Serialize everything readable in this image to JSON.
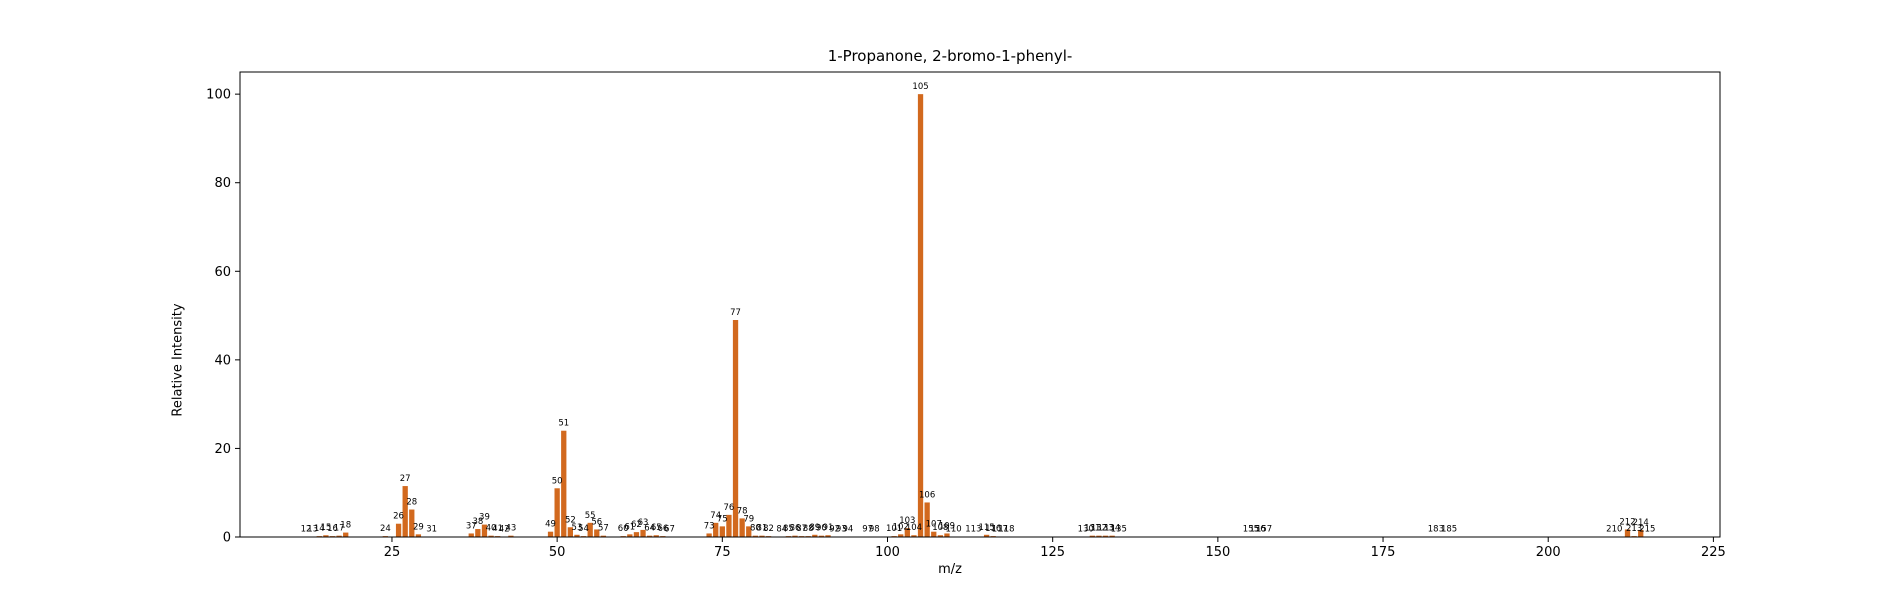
{
  "chart_data": {
    "type": "bar",
    "title": "1-Propanone, 2-bromo-1-phenyl-",
    "xlabel": "m/z",
    "ylabel": "Relative Intensity",
    "xlim": [
      2,
      226
    ],
    "ylim": [
      0,
      105
    ],
    "xticks": [
      25,
      50,
      75,
      100,
      125,
      150,
      175,
      200,
      225
    ],
    "yticks": [
      0,
      20,
      40,
      60,
      80,
      100
    ],
    "grid": false,
    "bar_color": "#d2691e",
    "peaks": [
      {
        "mz": 12,
        "intensity": 0.1
      },
      {
        "mz": 13,
        "intensity": 0.1
      },
      {
        "mz": 14,
        "intensity": 0.2
      },
      {
        "mz": 15,
        "intensity": 0.4
      },
      {
        "mz": 16,
        "intensity": 0.2
      },
      {
        "mz": 17,
        "intensity": 0.3
      },
      {
        "mz": 18,
        "intensity": 1.0
      },
      {
        "mz": 24,
        "intensity": 0.2
      },
      {
        "mz": 26,
        "intensity": 3.0
      },
      {
        "mz": 27,
        "intensity": 11.5
      },
      {
        "mz": 28,
        "intensity": 6.2
      },
      {
        "mz": 29,
        "intensity": 0.6
      },
      {
        "mz": 31,
        "intensity": 0.1
      },
      {
        "mz": 37,
        "intensity": 0.8
      },
      {
        "mz": 38,
        "intensity": 1.8
      },
      {
        "mz": 39,
        "intensity": 2.8
      },
      {
        "mz": 40,
        "intensity": 0.3
      },
      {
        "mz": 41,
        "intensity": 0.2
      },
      {
        "mz": 42,
        "intensity": 0.1
      },
      {
        "mz": 43,
        "intensity": 0.3
      },
      {
        "mz": 49,
        "intensity": 1.2
      },
      {
        "mz": 50,
        "intensity": 11.0
      },
      {
        "mz": 51,
        "intensity": 24.0
      },
      {
        "mz": 52,
        "intensity": 2.2
      },
      {
        "mz": 53,
        "intensity": 0.5
      },
      {
        "mz": 54,
        "intensity": 0.2
      },
      {
        "mz": 55,
        "intensity": 3.2
      },
      {
        "mz": 56,
        "intensity": 1.7
      },
      {
        "mz": 57,
        "intensity": 0.3
      },
      {
        "mz": 60,
        "intensity": 0.2
      },
      {
        "mz": 61,
        "intensity": 0.6
      },
      {
        "mz": 62,
        "intensity": 1.1
      },
      {
        "mz": 63,
        "intensity": 1.6
      },
      {
        "mz": 64,
        "intensity": 0.3
      },
      {
        "mz": 65,
        "intensity": 0.4
      },
      {
        "mz": 66,
        "intensity": 0.2
      },
      {
        "mz": 67,
        "intensity": 0.1
      },
      {
        "mz": 73,
        "intensity": 0.8
      },
      {
        "mz": 74,
        "intensity": 3.2
      },
      {
        "mz": 75,
        "intensity": 2.4
      },
      {
        "mz": 76,
        "intensity": 5.0
      },
      {
        "mz": 77,
        "intensity": 49.0
      },
      {
        "mz": 78,
        "intensity": 4.2
      },
      {
        "mz": 79,
        "intensity": 2.4
      },
      {
        "mz": 80,
        "intensity": 0.3
      },
      {
        "mz": 81,
        "intensity": 0.3
      },
      {
        "mz": 82,
        "intensity": 0.2
      },
      {
        "mz": 84,
        "intensity": 0.1
      },
      {
        "mz": 85,
        "intensity": 0.2
      },
      {
        "mz": 86,
        "intensity": 0.3
      },
      {
        "mz": 87,
        "intensity": 0.2
      },
      {
        "mz": 88,
        "intensity": 0.2
      },
      {
        "mz": 89,
        "intensity": 0.5
      },
      {
        "mz": 90,
        "intensity": 0.3
      },
      {
        "mz": 91,
        "intensity": 0.4
      },
      {
        "mz": 92,
        "intensity": 0.1
      },
      {
        "mz": 93,
        "intensity": 0.1
      },
      {
        "mz": 94,
        "intensity": 0.1
      },
      {
        "mz": 97,
        "intensity": 0.1
      },
      {
        "mz": 98,
        "intensity": 0.1
      },
      {
        "mz": 101,
        "intensity": 0.2
      },
      {
        "mz": 102,
        "intensity": 0.6
      },
      {
        "mz": 103,
        "intensity": 2.0
      },
      {
        "mz": 104,
        "intensity": 0.4
      },
      {
        "mz": 105,
        "intensity": 100.0
      },
      {
        "mz": 106,
        "intensity": 7.8
      },
      {
        "mz": 107,
        "intensity": 1.2
      },
      {
        "mz": 108,
        "intensity": 0.4
      },
      {
        "mz": 109,
        "intensity": 0.8
      },
      {
        "mz": 110,
        "intensity": 0.1
      },
      {
        "mz": 113,
        "intensity": 0.1
      },
      {
        "mz": 115,
        "intensity": 0.5
      },
      {
        "mz": 116,
        "intensity": 0.2
      },
      {
        "mz": 117,
        "intensity": 0.1
      },
      {
        "mz": 118,
        "intensity": 0.1
      },
      {
        "mz": 130,
        "intensity": 0.1
      },
      {
        "mz": 131,
        "intensity": 0.3
      },
      {
        "mz": 132,
        "intensity": 0.3
      },
      {
        "mz": 133,
        "intensity": 0.3
      },
      {
        "mz": 134,
        "intensity": 0.3
      },
      {
        "mz": 135,
        "intensity": 0.1
      },
      {
        "mz": 155,
        "intensity": 0.1
      },
      {
        "mz": 156,
        "intensity": 0.1
      },
      {
        "mz": 157,
        "intensity": 0.1
      },
      {
        "mz": 183,
        "intensity": 0.1
      },
      {
        "mz": 185,
        "intensity": 0.1
      },
      {
        "mz": 210,
        "intensity": 0.1
      },
      {
        "mz": 212,
        "intensity": 1.7
      },
      {
        "mz": 213,
        "intensity": 0.2
      },
      {
        "mz": 214,
        "intensity": 1.6
      },
      {
        "mz": 215,
        "intensity": 0.1
      }
    ]
  }
}
